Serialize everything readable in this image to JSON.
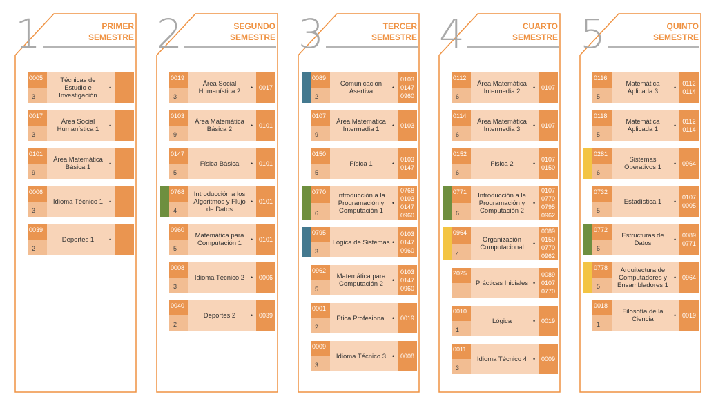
{
  "semesters": [
    {
      "number": "1",
      "ordinal": "PRIMER",
      "label": "SEMESTRE",
      "courses": [
        {
          "code": "0005",
          "credits": "3",
          "name": "Técnicas de Estudio e Investigación",
          "prereqs": []
        },
        {
          "code": "0017",
          "credits": "3",
          "name": "Área Social Humanística 1",
          "prereqs": []
        },
        {
          "code": "0101",
          "credits": "9",
          "name": "Área Matemática Básica 1",
          "prereqs": []
        },
        {
          "code": "0006",
          "credits": "3",
          "name": "Idioma Técnico 1",
          "prereqs": []
        },
        {
          "code": "0039",
          "credits": "2",
          "name": "Deportes 1",
          "prereqs": []
        }
      ]
    },
    {
      "number": "2",
      "ordinal": "SEGUNDO",
      "label": "SEMESTRE",
      "courses": [
        {
          "code": "0019",
          "credits": "3",
          "name": "Área Social Humanística 2",
          "prereqs": [
            "0017"
          ]
        },
        {
          "code": "0103",
          "credits": "9",
          "name": "Área Matemática Básica 2",
          "prereqs": [
            "0101"
          ]
        },
        {
          "code": "0147",
          "credits": "5",
          "name": "Física Básica",
          "prereqs": [
            "0101"
          ]
        },
        {
          "code": "0768",
          "credits": "4",
          "name": "Introducción a los Algoritmos y Flujo de Datos",
          "prereqs": [
            "0101"
          ],
          "accent": "#6e8f3f"
        },
        {
          "code": "0960",
          "credits": "5",
          "name": "Matemática para Computación 1",
          "prereqs": [
            "0101"
          ]
        },
        {
          "code": "0008",
          "credits": "3",
          "name": "Idioma Técnico 2",
          "prereqs": [
            "0006"
          ]
        },
        {
          "code": "0040",
          "credits": "2",
          "name": "Deportes 2",
          "prereqs": [
            "0039"
          ]
        }
      ]
    },
    {
      "number": "3",
      "ordinal": "TERCER",
      "label": "SEMESTRE",
      "courses": [
        {
          "code": "0089",
          "credits": "2",
          "name": "Comunicacion Asertiva",
          "prereqs": [
            "0103",
            "0147",
            "0960"
          ],
          "accent": "#44798f"
        },
        {
          "code": "0107",
          "credits": "9",
          "name": "Área Matemática Intermedia 1",
          "prereqs": [
            "0103"
          ]
        },
        {
          "code": "0150",
          "credits": "5",
          "name": "Física 1",
          "prereqs": [
            "0103",
            "0147"
          ]
        },
        {
          "code": "0770",
          "credits": "6",
          "name": "Introducción a la Programación y Computación 1",
          "prereqs": [
            "0768",
            "0103",
            "0147",
            "0960"
          ],
          "accent": "#6e8f3f"
        },
        {
          "code": "0795",
          "credits": "3",
          "name": "Lógica de Sistemas",
          "prereqs": [
            "0103",
            "0147",
            "0960"
          ],
          "accent": "#44798f"
        },
        {
          "code": "0962",
          "credits": "5",
          "name": "Matemática para Computación 2",
          "prereqs": [
            "0103",
            "0147",
            "0960"
          ]
        },
        {
          "code": "0001",
          "credits": "2",
          "name": "Ética Profesional",
          "prereqs": [
            "0019"
          ]
        },
        {
          "code": "0009",
          "credits": "3",
          "name": "Idioma Técnico 3",
          "prereqs": [
            "0008"
          ]
        }
      ]
    },
    {
      "number": "4",
      "ordinal": "CUARTO",
      "label": "SEMESTRE",
      "courses": [
        {
          "code": "0112",
          "credits": "6",
          "name": "Área Matemática Intermedia 2",
          "prereqs": [
            "0107"
          ]
        },
        {
          "code": "0114",
          "credits": "6",
          "name": "Área Matemática Intermedia 3",
          "prereqs": [
            "0107"
          ]
        },
        {
          "code": "0152",
          "credits": "6",
          "name": "Física 2",
          "prereqs": [
            "0107",
            "0150"
          ]
        },
        {
          "code": "0771",
          "credits": "6",
          "name": "Introducción a la Programación y Computación 2",
          "prereqs": [
            "0107",
            "0770",
            "0795",
            "0962"
          ],
          "accent": "#6e8f3f"
        },
        {
          "code": "0964",
          "credits": "4",
          "name": "Organización Computacional",
          "prereqs": [
            "0089",
            "0150",
            "0770",
            "0962"
          ],
          "accent": "#f3c443"
        },
        {
          "code": "2025",
          "name": "Prácticas Iniciales",
          "prereqs": [
            "0089",
            "0107",
            "0770"
          ]
        },
        {
          "code": "0010",
          "credits": "1",
          "name": "Lógica",
          "prereqs": [
            "0019"
          ]
        },
        {
          "code": "0011",
          "credits": "3",
          "name": "Idioma Técnico 4",
          "prereqs": [
            "0009"
          ]
        }
      ]
    },
    {
      "number": "5",
      "ordinal": "QUINTO",
      "label": "SEMESTRE",
      "courses": [
        {
          "code": "0116",
          "credits": "5",
          "name": "Matemática Aplicada 3",
          "prereqs": [
            "0112",
            "0114"
          ]
        },
        {
          "code": "0118",
          "credits": "5",
          "name": "Matemática Aplicada 1",
          "prereqs": [
            "0112",
            "0114"
          ]
        },
        {
          "code": "0281",
          "credits": "6",
          "name": "Sistemas Operativos 1",
          "prereqs": [
            "0964"
          ],
          "accent": "#f3c443"
        },
        {
          "code": "0732",
          "credits": "5",
          "name": "Estadística 1",
          "prereqs": [
            "0107",
            "0005"
          ]
        },
        {
          "code": "0772",
          "credits": "6",
          "name": "Estructuras de Datos",
          "prereqs": [
            "0089",
            "0771"
          ],
          "accent": "#6e8f3f"
        },
        {
          "code": "0778",
          "credits": "5",
          "name": "Arquitectura de Computadores y Ensambladores 1",
          "prereqs": [
            "0964"
          ],
          "accent": "#f3c443"
        },
        {
          "code": "0018",
          "credits": "1",
          "name": "Filosofía de la Ciencia",
          "prereqs": [
            "0019"
          ]
        }
      ]
    }
  ]
}
